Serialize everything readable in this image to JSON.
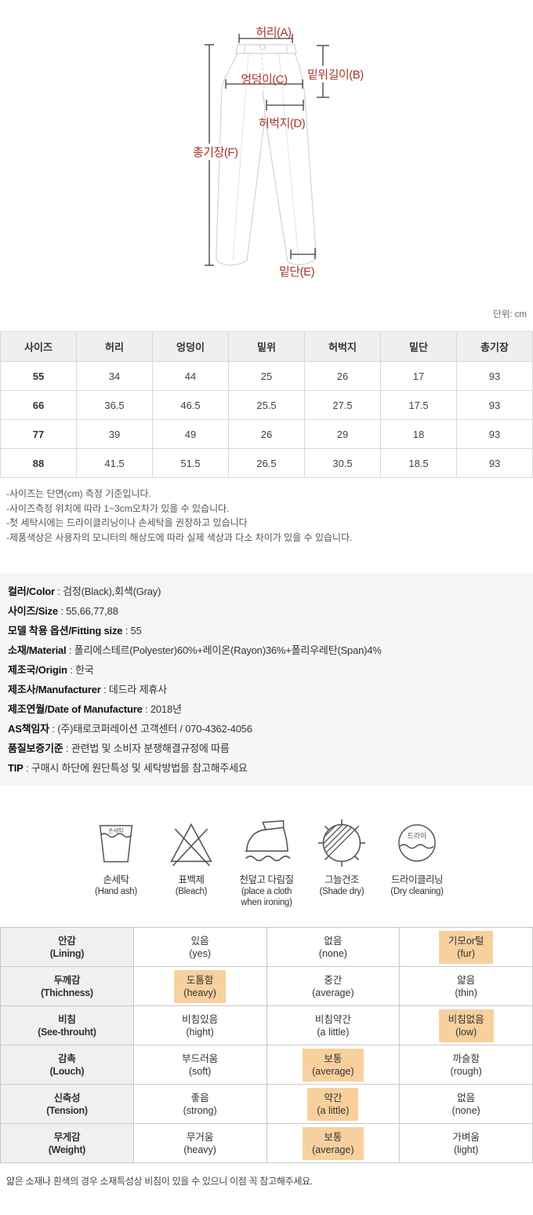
{
  "colors": {
    "diagram_label": "#a5352f",
    "highlight": "#f8d09e",
    "info_panel_bg": "#f5f6f8"
  },
  "diagram": {
    "unit_label": "단위: cm",
    "labels": {
      "waist": "허리(A)",
      "rise": "밑위길이(B)",
      "hip": "엉덩이(C)",
      "thigh": "허벅지(D)",
      "length": "총기장(F)",
      "hem": "밑단(E)"
    }
  },
  "size_table": {
    "headers": [
      "사이즈",
      "허리",
      "엉덩이",
      "밑위",
      "허벅지",
      "밑단",
      "총기장"
    ],
    "rows": [
      [
        "55",
        "34",
        "44",
        "25",
        "26",
        "17",
        "93"
      ],
      [
        "66",
        "36.5",
        "46.5",
        "25.5",
        "27.5",
        "17.5",
        "93"
      ],
      [
        "77",
        "39",
        "49",
        "26",
        "29",
        "18",
        "93"
      ],
      [
        "88",
        "41.5",
        "51.5",
        "26.5",
        "30.5",
        "18.5",
        "93"
      ]
    ]
  },
  "notes": [
    "-사이즈는 단면(cm) 측정 기준입니다.",
    "-사이즈측정 위치에 따라 1~3cm오차가 있을 수 있습니다.",
    "-첫 세탁시에는 드라이클리닝이나 손세탁을 권장하고 있습니다",
    "-제품색상은 사용자의 모니터의 해상도에 따라 실제 색상과 다소 차이가 있을 수 있습니다."
  ],
  "product_info": [
    {
      "label": "컬러/Color",
      "value": "검정(Black),회색(Gray)"
    },
    {
      "label": "사이즈/Size",
      "value": "55,66,77,88"
    },
    {
      "label": "모델 착용 옵션/Fitting size",
      "value": "55"
    },
    {
      "label": "소재/Material",
      "value": "폴리에스테르(Polyester)60%+레이온(Rayon)36%+폴리우레탄(Span)4%"
    },
    {
      "label": "제조국/Origin",
      "value": "한국"
    },
    {
      "label": "제조사/Manufacturer",
      "value": "데드라 제휴사"
    },
    {
      "label": "제조연월/Date of Manufacture",
      "value": "2018년"
    },
    {
      "label": "AS책임자",
      "value": "(주)태로코퍼레이션 고객센터 / 070-4362-4056"
    },
    {
      "label": "품질보증기준",
      "value": "관련법 및 소비자 분쟁해결규정에 따름"
    },
    {
      "label": "TIP",
      "value": "구매시 하단에 원단특성 및 세탁방법을 참고해주세요"
    }
  ],
  "care_icons": [
    {
      "title": "손세탁",
      "subtitle": "(Hand ash)",
      "inner_text": "손세탁"
    },
    {
      "title": "표백제",
      "subtitle": "(Bleach)",
      "inner_text": ""
    },
    {
      "title": "천덮고 다림질",
      "subtitle": "(place a cloth when ironing)",
      "inner_text": ""
    },
    {
      "title": "그늘건조",
      "subtitle": "(Shade dry)",
      "inner_text": ""
    },
    {
      "title": "드라이클리닝",
      "subtitle": "(Dry cleaning)",
      "inner_text": "드라이"
    }
  ],
  "fabric_table": {
    "rows": [
      {
        "label": "안감",
        "label_en": "(Lining)",
        "options": [
          {
            "ko": "있음",
            "en": "(yes)",
            "selected": false
          },
          {
            "ko": "없음",
            "en": "(none)",
            "selected": false
          },
          {
            "ko": "기모or털",
            "en": "(fur)",
            "selected": true
          }
        ]
      },
      {
        "label": "두께감",
        "label_en": "(Thichness)",
        "options": [
          {
            "ko": "도톰함",
            "en": "(heavy)",
            "selected": true
          },
          {
            "ko": "중간",
            "en": "(average)",
            "selected": false
          },
          {
            "ko": "얇음",
            "en": "(thin)",
            "selected": false
          }
        ]
      },
      {
        "label": "비침",
        "label_en": "(See-throuht)",
        "options": [
          {
            "ko": "비침있음",
            "en": "(hight)",
            "selected": false
          },
          {
            "ko": "비침약간",
            "en": "(a little)",
            "selected": false
          },
          {
            "ko": "비침없음",
            "en": "(low)",
            "selected": true
          }
        ]
      },
      {
        "label": "감촉",
        "label_en": "(Louch)",
        "options": [
          {
            "ko": "부드러움",
            "en": "(soft)",
            "selected": false
          },
          {
            "ko": "보통",
            "en": "(average)",
            "selected": true
          },
          {
            "ko": "까슬함",
            "en": "(rough)",
            "selected": false
          }
        ]
      },
      {
        "label": "신축성",
        "label_en": "(Tension)",
        "options": [
          {
            "ko": "좋음",
            "en": "(strong)",
            "selected": false
          },
          {
            "ko": "약간",
            "en": "(a little)",
            "selected": true
          },
          {
            "ko": "없음",
            "en": "(none)",
            "selected": false
          }
        ]
      },
      {
        "label": "무게감",
        "label_en": "(Weight)",
        "options": [
          {
            "ko": "무거움",
            "en": "(heavy)",
            "selected": false
          },
          {
            "ko": "보통",
            "en": "(average)",
            "selected": true
          },
          {
            "ko": "가벼움",
            "en": "(light)",
            "selected": false
          }
        ]
      }
    ]
  },
  "footer_note": "얇은 소재나 흰색의 경우 소재특성상 비침이 있을 수 있으니 이점 꼭 참고해주세요."
}
